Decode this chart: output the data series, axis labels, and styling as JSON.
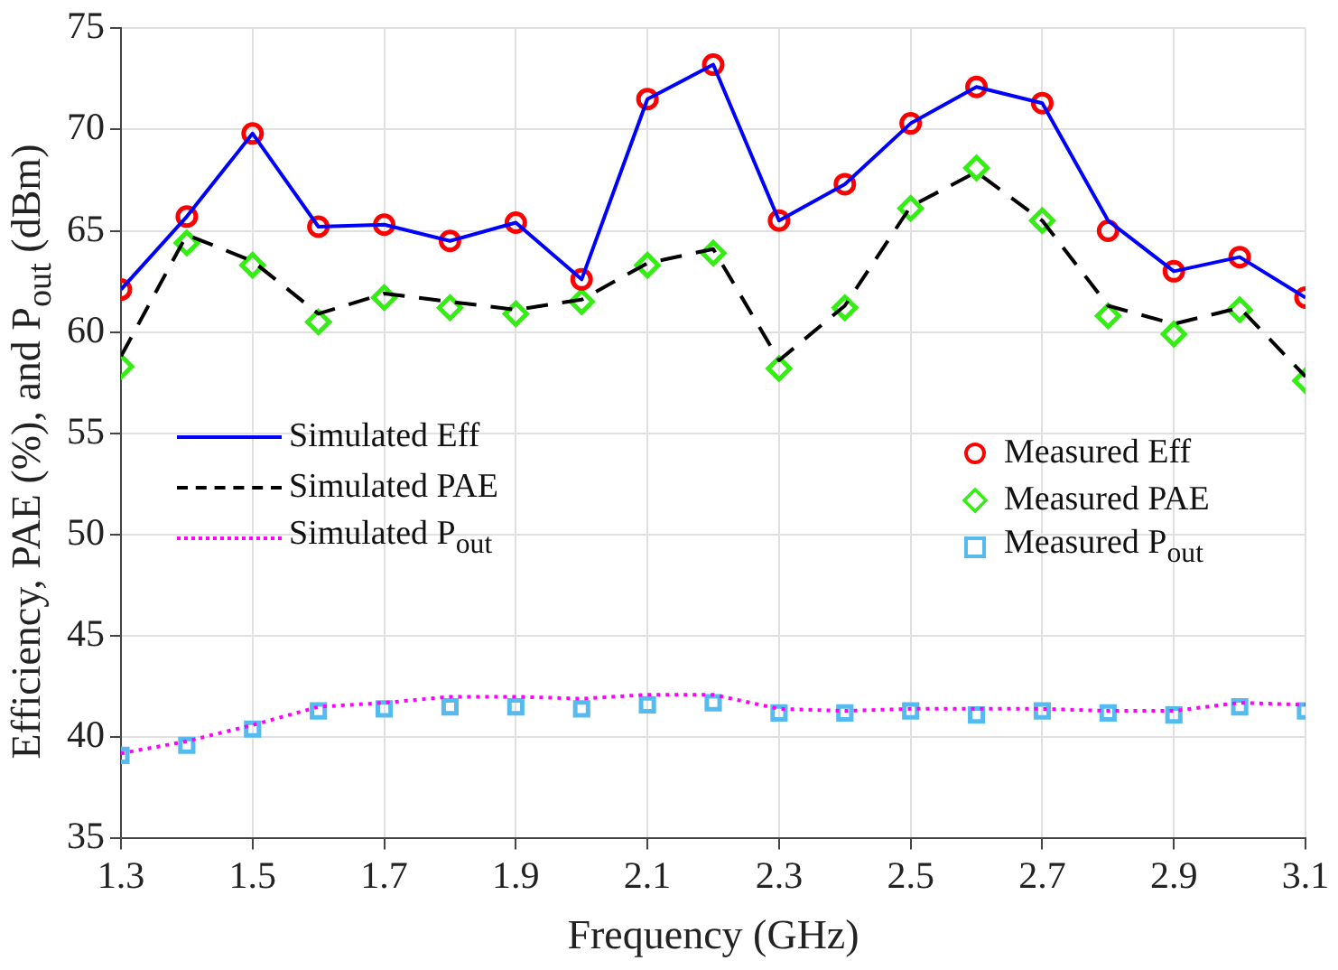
{
  "chart_data": {
    "type": "line",
    "xlabel": "Frequency (GHz)",
    "ylabel": "Efficiency, PAE (%), and P$_{out}$ (dBm)",
    "x": [
      1.3,
      1.4,
      1.5,
      1.6,
      1.7,
      1.8,
      1.9,
      2.0,
      2.1,
      2.2,
      2.3,
      2.4,
      2.5,
      2.6,
      2.7,
      2.8,
      2.9,
      3.0,
      3.1
    ],
    "series": [
      {
        "name": "Simulated Eff",
        "type": "line",
        "color": "#0000ff",
        "line_style": "solid",
        "marker": "none",
        "values": [
          62.1,
          65.7,
          69.8,
          65.2,
          65.3,
          64.5,
          65.4,
          62.6,
          71.5,
          73.2,
          65.5,
          67.3,
          70.3,
          72.1,
          71.3,
          65.5,
          63.0,
          63.7,
          61.7
        ]
      },
      {
        "name": "Simulated PAE",
        "type": "line",
        "color": "#000000",
        "line_style": "dashed",
        "marker": "none",
        "values": [
          58.8,
          64.8,
          63.5,
          60.9,
          61.9,
          61.5,
          61.1,
          61.6,
          63.4,
          64.1,
          58.6,
          61.3,
          66.2,
          67.9,
          65.5,
          61.3,
          60.4,
          61.2,
          57.8
        ]
      },
      {
        "name": "Simulated P$_{out}$",
        "type": "line",
        "color": "#ff00ff",
        "line_style": "dotted",
        "marker": "none",
        "values": [
          39.2,
          39.8,
          40.6,
          41.5,
          41.7,
          42.0,
          42.0,
          41.9,
          42.1,
          42.1,
          41.4,
          41.3,
          41.4,
          41.4,
          41.4,
          41.3,
          41.3,
          41.7,
          41.6
        ]
      },
      {
        "name": "Measured Eff",
        "type": "scatter",
        "color": "#ff0000",
        "marker": "circle",
        "values": [
          62.1,
          65.7,
          69.8,
          65.2,
          65.3,
          64.5,
          65.4,
          62.6,
          71.5,
          73.2,
          65.5,
          67.3,
          70.3,
          72.1,
          71.3,
          65.0,
          63.0,
          63.7,
          61.7
        ]
      },
      {
        "name": "Measured PAE",
        "type": "scatter",
        "color": "#33ee11",
        "marker": "diamond",
        "values": [
          58.3,
          64.4,
          63.3,
          60.5,
          61.7,
          61.2,
          60.9,
          61.5,
          63.3,
          63.9,
          58.2,
          61.2,
          66.1,
          68.1,
          65.5,
          60.8,
          59.9,
          61.1,
          57.6
        ]
      },
      {
        "name": "Measured P$_{out}$",
        "type": "scatter",
        "color": "#55bbee",
        "marker": "square",
        "values": [
          39.1,
          39.6,
          40.4,
          41.3,
          41.4,
          41.5,
          41.5,
          41.4,
          41.6,
          41.7,
          41.2,
          41.2,
          41.3,
          41.1,
          41.3,
          41.2,
          41.1,
          41.5,
          41.3
        ]
      }
    ],
    "xlim": [
      1.3,
      3.1
    ],
    "xticks": [
      1.3,
      1.5,
      1.7,
      1.9,
      2.1,
      2.3,
      2.5,
      2.7,
      2.9,
      3.1
    ],
    "ylim": [
      35,
      75
    ],
    "yticks": [
      35,
      40,
      45,
      50,
      55,
      60,
      65,
      70,
      75
    ],
    "grid": true,
    "legend": "center"
  }
}
